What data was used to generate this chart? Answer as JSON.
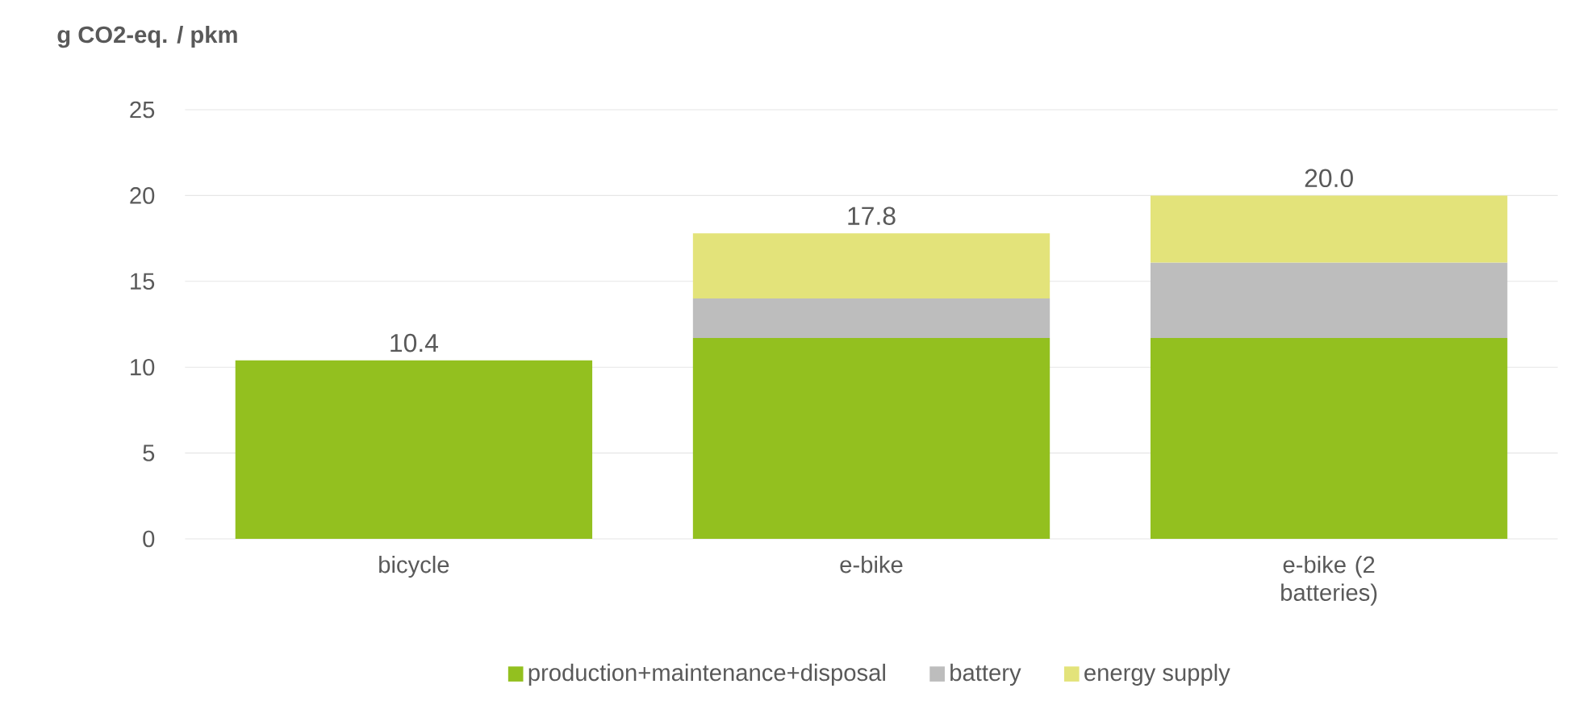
{
  "chart_data": {
    "type": "bar",
    "ylabel": "g CO2-eq. / pkm",
    "categories": [
      "bicycle",
      "e-bike",
      "e-bike (2 batteries)"
    ],
    "series": [
      {
        "name": "production+maintenance+disposal",
        "color": "#93c01f",
        "values": [
          10.4,
          11.7,
          11.7
        ]
      },
      {
        "name": "battery",
        "color": "#bdbdbd",
        "values": [
          null,
          2.3,
          4.4
        ]
      },
      {
        "name": "energy supply",
        "color": "#e3e37a",
        "values": [
          null,
          3.8,
          3.9
        ]
      }
    ],
    "stacked": true,
    "totals": [
      "10.4",
      "17.8",
      "20.0"
    ],
    "ylim": [
      0,
      25
    ],
    "yticks": [
      0,
      5,
      10,
      15,
      20,
      25
    ],
    "grid": "y",
    "legend": "bottom"
  }
}
